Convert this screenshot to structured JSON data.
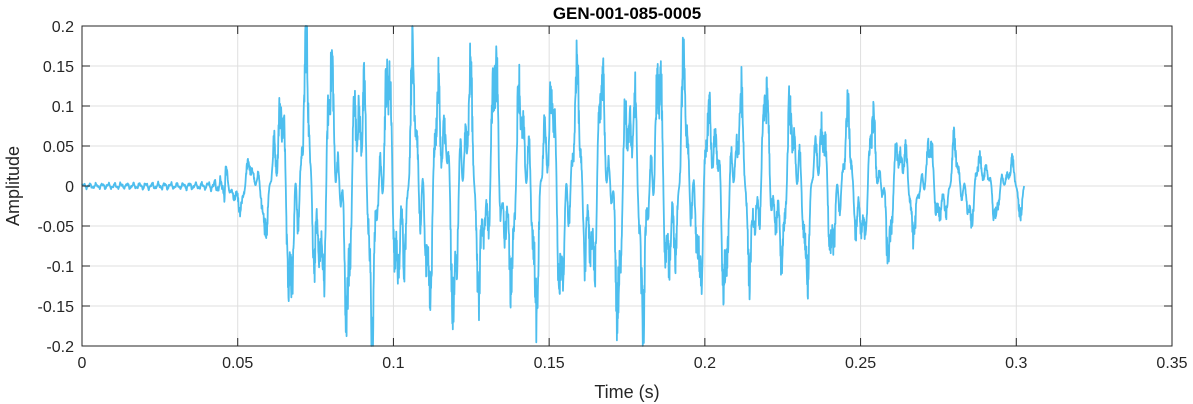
{
  "chart_data": {
    "type": "line",
    "title": "GEN-001-085-0005",
    "xlabel": "Time (s)",
    "ylabel": "Amplitude",
    "xlim": [
      0,
      0.35
    ],
    "ylim": [
      -0.2,
      0.2
    ],
    "grid": true,
    "line_color": "#4DBEEE",
    "xticks": [
      0,
      0.05,
      0.1,
      0.15,
      0.2,
      0.25,
      0.3,
      0.35
    ],
    "xtick_labels": [
      "0",
      "0.05",
      "0.1",
      "0.15",
      "0.2",
      "0.25",
      "0.3",
      "0.35"
    ],
    "yticks": [
      0.2,
      0.15,
      0.1,
      0.05,
      0,
      -0.05,
      -0.1,
      -0.15,
      -0.2
    ],
    "ytick_labels": [
      "0.2",
      "0.15",
      "0.1",
      "0.05",
      "0",
      "-0.05",
      "-0.1",
      "-0.15",
      "-0.2"
    ],
    "series": [
      {
        "x_start": 0,
        "x_end": 0.3025,
        "envelope": [
          [
            0.0,
            0.003
          ],
          [
            0.02,
            0.004
          ],
          [
            0.04,
            0.004
          ],
          [
            0.045,
            0.01
          ],
          [
            0.048,
            0.035
          ],
          [
            0.052,
            0.03
          ],
          [
            0.056,
            0.035
          ],
          [
            0.06,
            0.06
          ],
          [
            0.063,
            0.12
          ],
          [
            0.068,
            0.15
          ],
          [
            0.072,
            0.16
          ],
          [
            0.076,
            0.15
          ],
          [
            0.08,
            0.15
          ],
          [
            0.085,
            0.15
          ],
          [
            0.09,
            0.165
          ],
          [
            0.095,
            0.15
          ],
          [
            0.1,
            0.15
          ],
          [
            0.11,
            0.145
          ],
          [
            0.12,
            0.14
          ],
          [
            0.13,
            0.145
          ],
          [
            0.14,
            0.13
          ],
          [
            0.15,
            0.14
          ],
          [
            0.16,
            0.135
          ],
          [
            0.17,
            0.14
          ],
          [
            0.18,
            0.15
          ],
          [
            0.19,
            0.14
          ],
          [
            0.2,
            0.115
          ],
          [
            0.21,
            0.115
          ],
          [
            0.22,
            0.11
          ],
          [
            0.23,
            0.1
          ],
          [
            0.24,
            0.09
          ],
          [
            0.25,
            0.085
          ],
          [
            0.26,
            0.08
          ],
          [
            0.265,
            0.06
          ],
          [
            0.27,
            0.055
          ],
          [
            0.28,
            0.05
          ],
          [
            0.29,
            0.04
          ],
          [
            0.298,
            0.03
          ],
          [
            0.302,
            0.04
          ],
          [
            0.3025,
            0.0
          ]
        ]
      }
    ]
  }
}
